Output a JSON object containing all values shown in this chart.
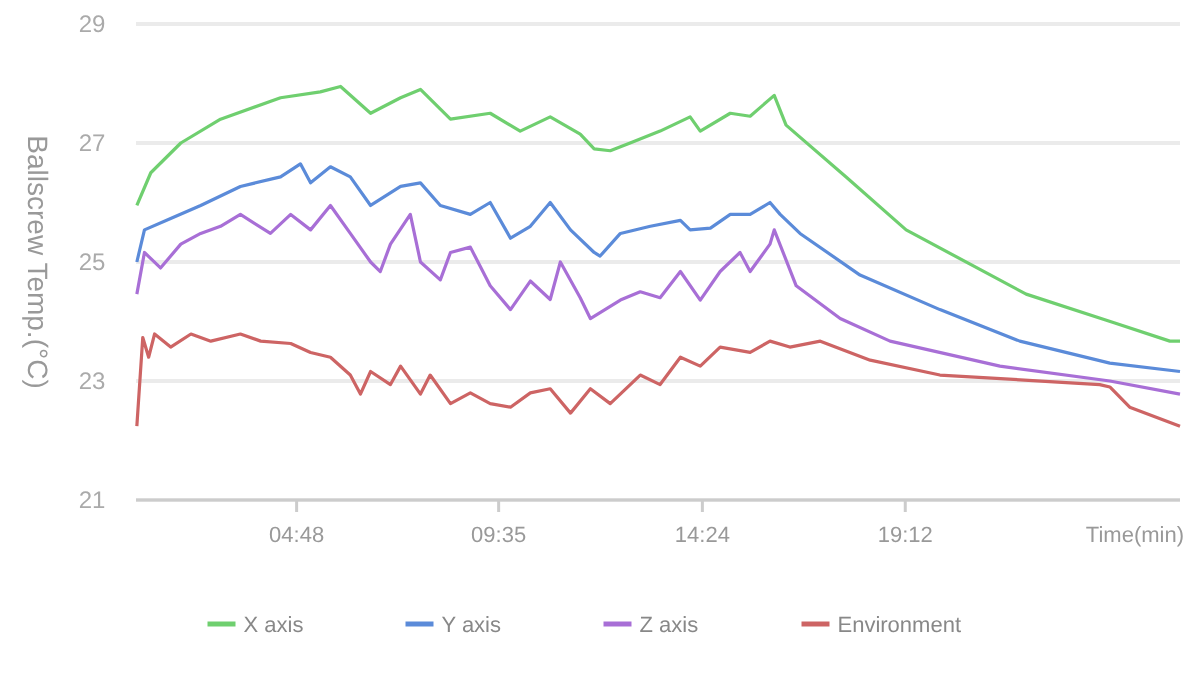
{
  "chart_data": {
    "type": "line",
    "ylabel": "Ballscrew Temp.(°C)",
    "xlabel": "Time(min)",
    "xlim": [
      1,
      25.7
    ],
    "xticks": [
      {
        "value": 4.8,
        "label": "04:48"
      },
      {
        "value": 9.58,
        "label": "09:35"
      },
      {
        "value": 14.4,
        "label": "14:24"
      },
      {
        "value": 19.2,
        "label": "19:12"
      }
    ],
    "ylim": [
      21,
      29
    ],
    "yticks": [
      21,
      23,
      25,
      27,
      29
    ],
    "grid": "y",
    "legend": "bottom",
    "marker": "none",
    "line_style": "solid",
    "series": [
      {
        "name": "X axis",
        "color": "#6fcf6f",
        "x": [
          1.02,
          1.35,
          2.06,
          3.0,
          4.42,
          5.36,
          5.84,
          6.55,
          7.26,
          7.73,
          8.44,
          9.38,
          10.09,
          10.8,
          11.51,
          11.84,
          12.22,
          12.69,
          13.4,
          14.11,
          14.35,
          15.06,
          15.53,
          16.1,
          16.38,
          17.8,
          19.22,
          22.06,
          24.14,
          25.46,
          25.7
        ],
        "values": [
          25.95,
          26.5,
          27.0,
          27.4,
          27.76,
          27.86,
          27.95,
          27.5,
          27.76,
          27.9,
          27.4,
          27.5,
          27.2,
          27.44,
          27.15,
          26.9,
          26.87,
          27.0,
          27.2,
          27.44,
          27.2,
          27.5,
          27.45,
          27.8,
          27.3,
          26.43,
          25.54,
          24.46,
          23.98,
          23.67,
          23.67
        ]
      },
      {
        "name": "Y axis",
        "color": "#5b8bd9",
        "x": [
          1.02,
          1.2,
          1.82,
          2.53,
          3.47,
          4.42,
          4.89,
          5.13,
          5.6,
          6.07,
          6.55,
          7.26,
          7.73,
          8.2,
          8.91,
          9.38,
          9.86,
          10.33,
          10.8,
          11.28,
          11.84,
          11.98,
          12.46,
          13.17,
          13.88,
          14.11,
          14.59,
          15.06,
          15.53,
          16.0,
          16.24,
          16.71,
          18.13,
          20.02,
          21.91,
          24.04,
          25.7
        ],
        "values": [
          25.0,
          25.54,
          25.73,
          25.95,
          26.27,
          26.43,
          26.65,
          26.33,
          26.6,
          26.43,
          25.95,
          26.27,
          26.33,
          25.95,
          25.8,
          26.0,
          25.4,
          25.6,
          26.0,
          25.54,
          25.16,
          25.1,
          25.48,
          25.6,
          25.7,
          25.54,
          25.57,
          25.8,
          25.8,
          26.0,
          25.8,
          25.48,
          24.78,
          24.2,
          23.67,
          23.3,
          23.16
        ]
      },
      {
        "name": "Z axis",
        "color": "#a86fd6",
        "x": [
          1.02,
          1.2,
          1.58,
          2.06,
          2.53,
          3.0,
          3.47,
          4.18,
          4.66,
          5.13,
          5.6,
          6.07,
          6.55,
          6.78,
          7.02,
          7.49,
          7.73,
          8.2,
          8.44,
          8.91,
          9.38,
          9.86,
          10.33,
          10.8,
          11.04,
          11.51,
          11.75,
          12.46,
          12.93,
          13.4,
          13.88,
          14.35,
          14.82,
          15.29,
          15.53,
          16.0,
          16.1,
          16.62,
          17.66,
          18.84,
          21.44,
          24.04,
          25.7
        ],
        "values": [
          24.46,
          25.16,
          24.9,
          25.3,
          25.48,
          25.6,
          25.8,
          25.48,
          25.8,
          25.54,
          25.95,
          25.48,
          25.0,
          24.84,
          25.3,
          25.8,
          25.0,
          24.7,
          25.16,
          25.25,
          24.6,
          24.2,
          24.68,
          24.37,
          25.0,
          24.4,
          24.05,
          24.36,
          24.5,
          24.4,
          24.84,
          24.36,
          24.84,
          25.16,
          24.84,
          25.3,
          25.54,
          24.6,
          24.05,
          23.67,
          23.25,
          23.0,
          22.78
        ]
      },
      {
        "name": "Environment",
        "color": "#cd6464",
        "x": [
          1.02,
          1.16,
          1.3,
          1.44,
          1.82,
          2.3,
          2.77,
          3.47,
          3.95,
          4.66,
          5.13,
          5.6,
          6.07,
          6.31,
          6.55,
          7.02,
          7.26,
          7.73,
          7.96,
          8.44,
          8.91,
          9.38,
          9.86,
          10.33,
          10.8,
          11.28,
          11.75,
          12.22,
          12.93,
          13.4,
          13.88,
          14.35,
          14.82,
          15.53,
          16.0,
          16.47,
          17.19,
          18.37,
          20.02,
          23.8,
          24.04,
          24.51,
          25.7
        ],
        "values": [
          22.24,
          23.73,
          23.4,
          23.79,
          23.57,
          23.79,
          23.67,
          23.79,
          23.67,
          23.63,
          23.48,
          23.4,
          23.1,
          22.78,
          23.16,
          22.94,
          23.25,
          22.78,
          23.1,
          22.62,
          22.8,
          22.62,
          22.56,
          22.8,
          22.87,
          22.46,
          22.87,
          22.62,
          23.1,
          22.94,
          23.4,
          23.25,
          23.57,
          23.48,
          23.67,
          23.57,
          23.67,
          23.35,
          23.1,
          22.94,
          22.9,
          22.56,
          22.24
        ]
      }
    ]
  }
}
